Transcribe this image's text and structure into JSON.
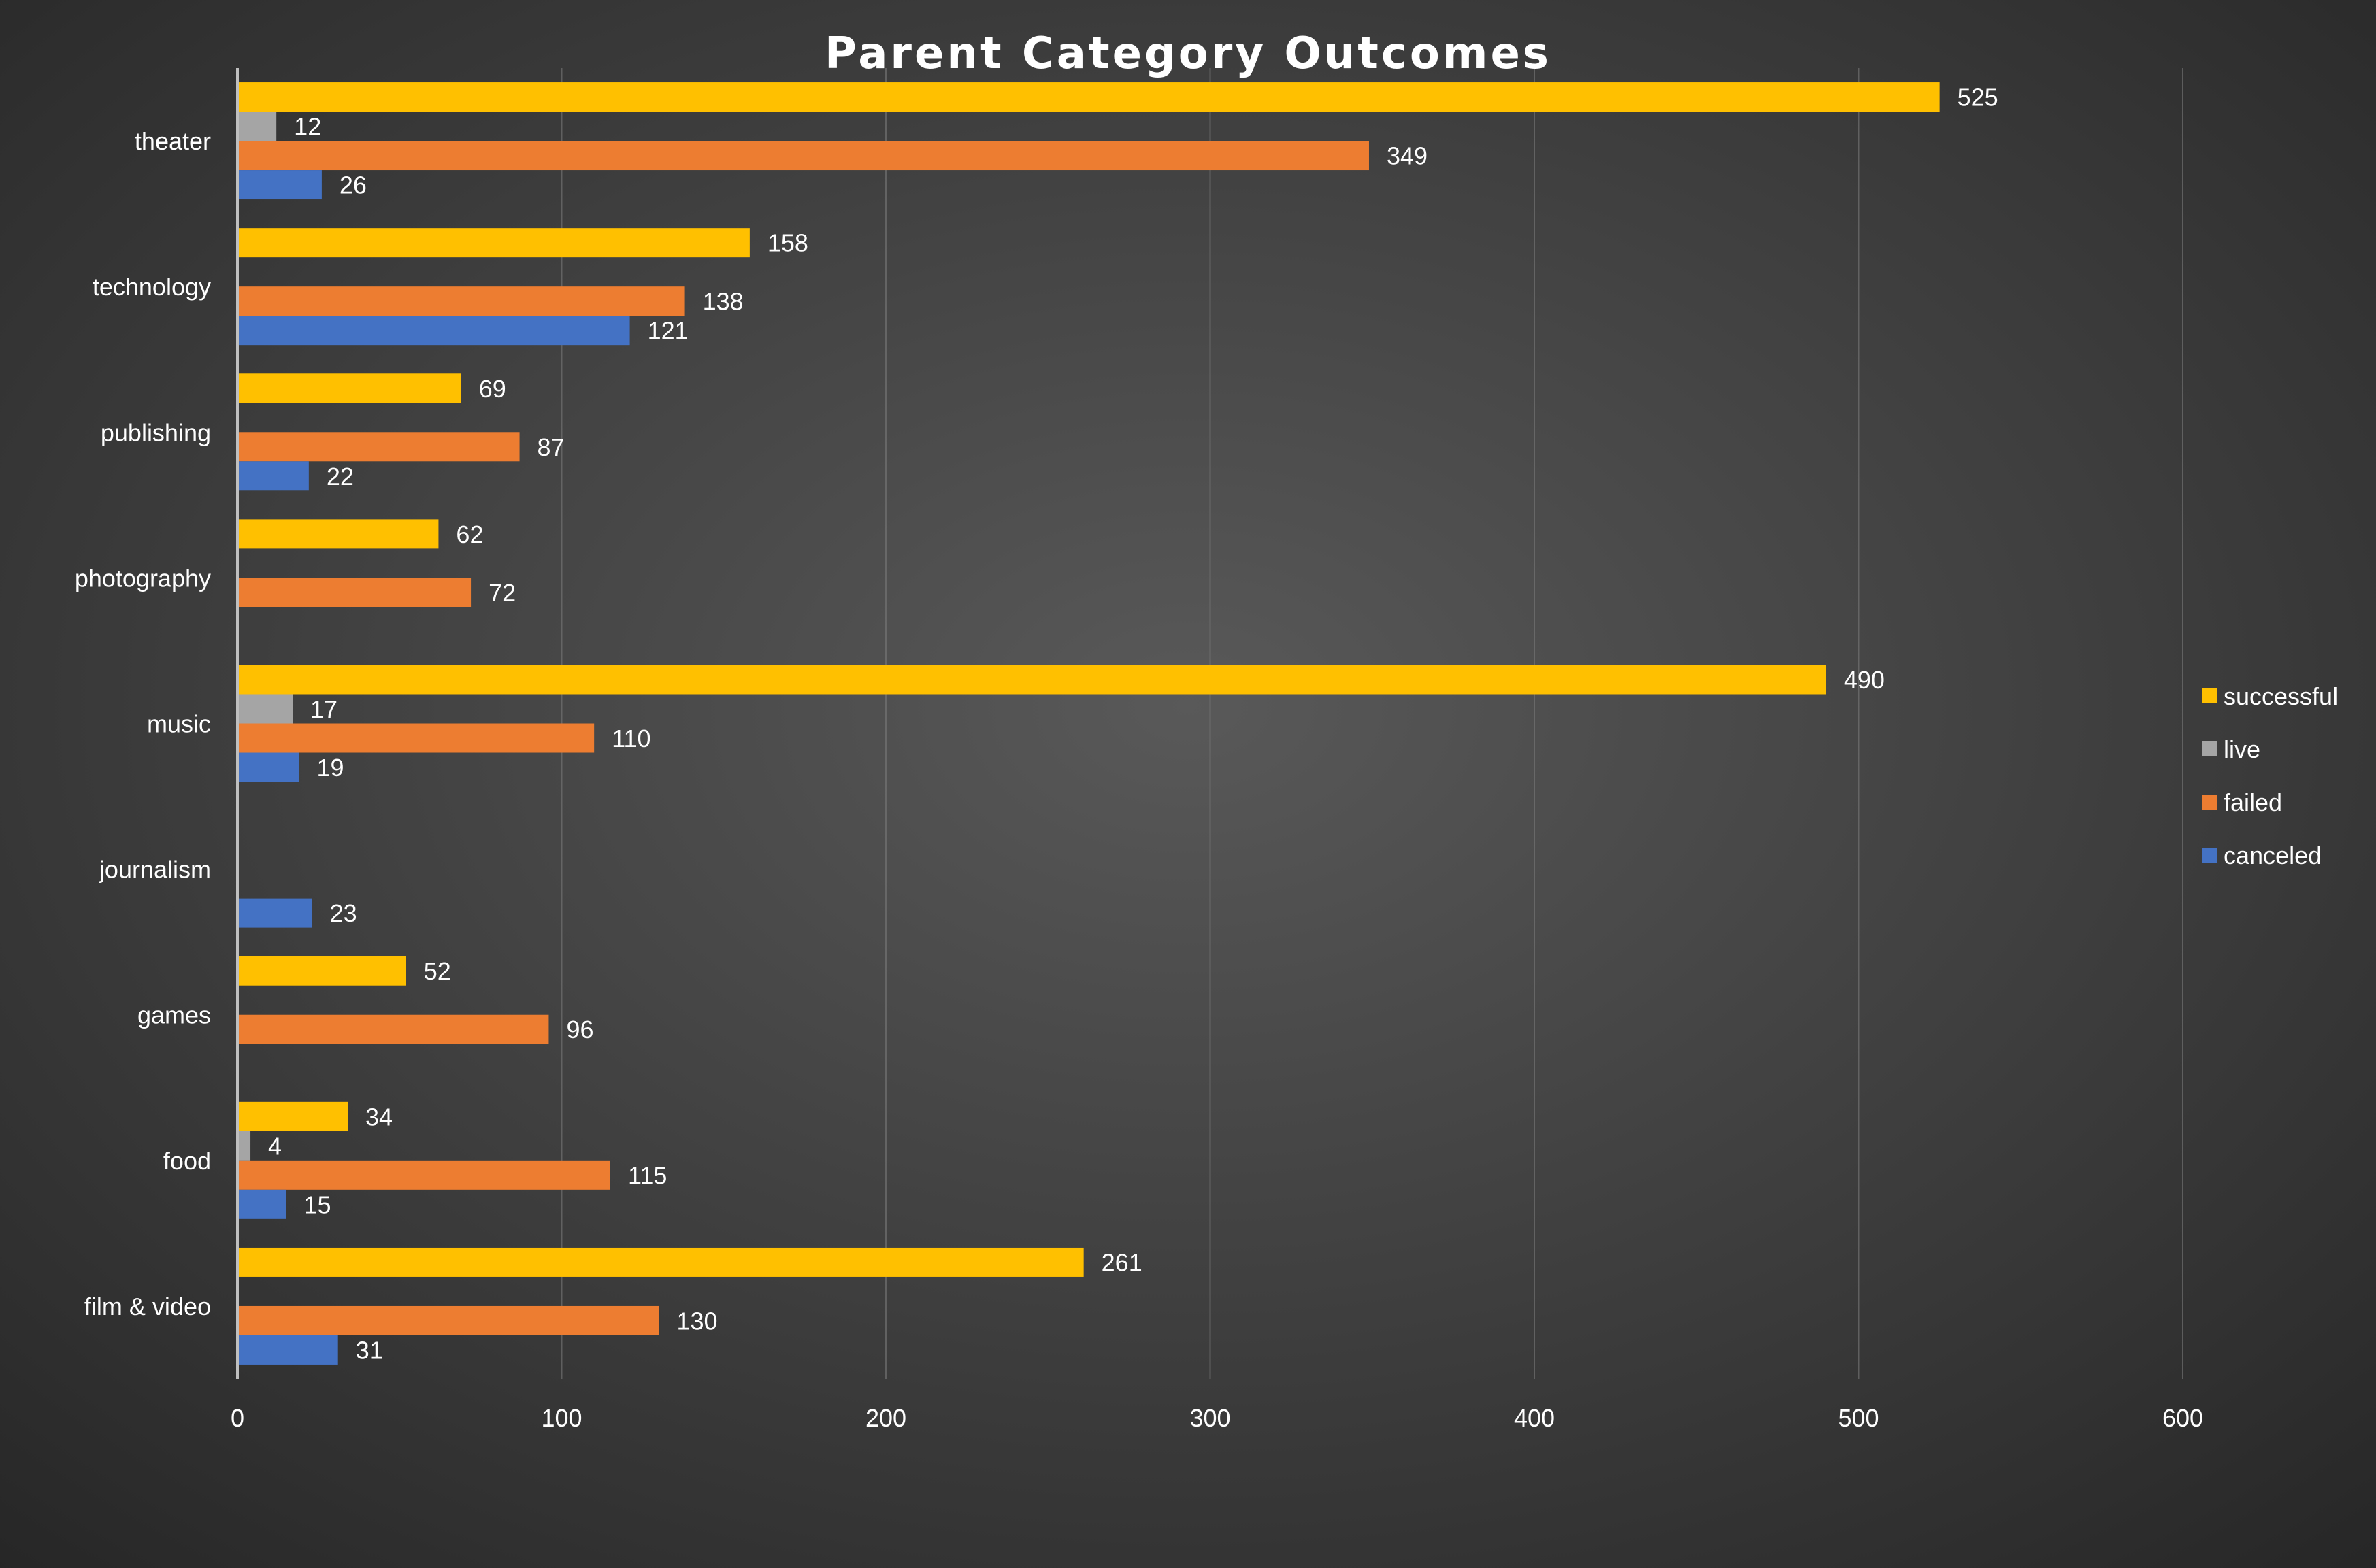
{
  "chart_data": {
    "type": "bar",
    "orientation": "horizontal",
    "title": "Parent Category Outcomes",
    "xlabel": "",
    "ylabel": "",
    "xlim": [
      0,
      600
    ],
    "xticks": [
      0,
      100,
      200,
      300,
      400,
      500,
      600
    ],
    "grid": true,
    "legend_position": "right",
    "categories": [
      "theater",
      "technology",
      "publishing",
      "photography",
      "music",
      "journalism",
      "games",
      "food",
      "film & video"
    ],
    "series": [
      {
        "name": "successful",
        "color": "#FFC000",
        "values": [
          525,
          158,
          69,
          62,
          490,
          null,
          52,
          34,
          261
        ]
      },
      {
        "name": "live",
        "color": "#A5A5A5",
        "values": [
          12,
          null,
          null,
          null,
          17,
          null,
          null,
          4,
          null
        ]
      },
      {
        "name": "failed",
        "color": "#ED7D31",
        "values": [
          349,
          138,
          87,
          72,
          110,
          null,
          96,
          115,
          130
        ]
      },
      {
        "name": "canceled",
        "color": "#4472C4",
        "values": [
          26,
          121,
          22,
          null,
          19,
          23,
          null,
          15,
          31
        ]
      }
    ],
    "background": {
      "inner": "#595959",
      "outer": "#262626"
    },
    "grid_color": "#7a7a7a",
    "axis_color": "#bfbfbf"
  }
}
